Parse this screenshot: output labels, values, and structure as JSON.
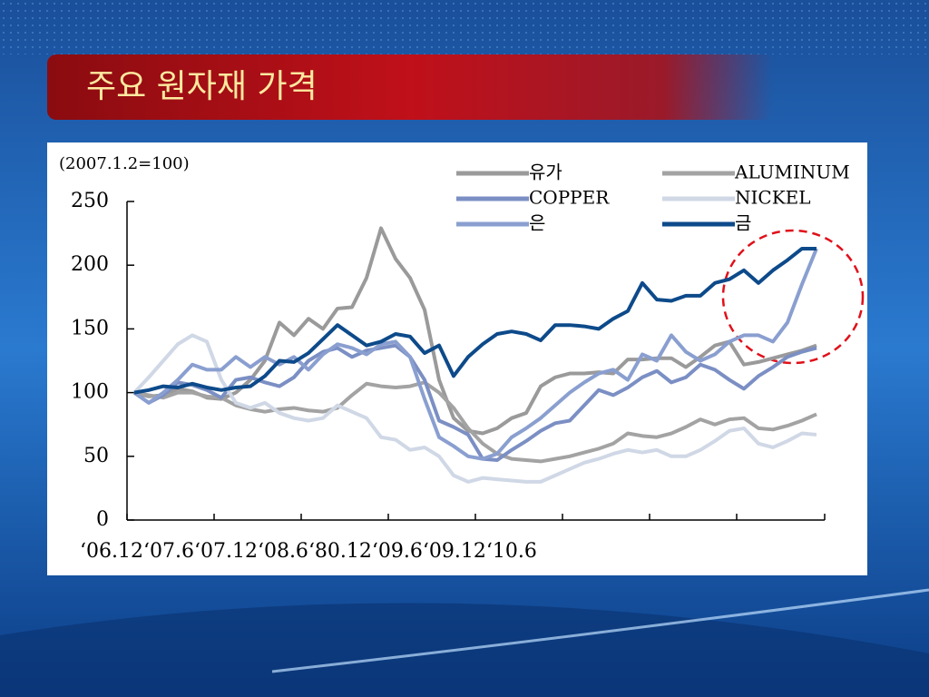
{
  "title": "주요 원자재 가격",
  "chart_data": {
    "type": "line",
    "y_label": "(2007.1.2=100)",
    "categories": [
      "‘06.12",
      null,
      null,
      null,
      null,
      null,
      "‘07.6",
      null,
      null,
      null,
      null,
      null,
      "‘07.12",
      null,
      null,
      null,
      null,
      null,
      "‘08.6",
      null,
      null,
      null,
      null,
      null,
      "‘80.12",
      null,
      null,
      null,
      null,
      null,
      "‘09.6",
      null,
      null,
      null,
      null,
      null,
      "‘09.12",
      null,
      null,
      null,
      null,
      null,
      "‘10.6",
      null,
      null,
      null,
      null,
      null
    ],
    "ylim": [
      0,
      250
    ],
    "yticks": [
      0,
      50,
      100,
      150,
      200,
      250
    ],
    "grid": false,
    "legend": "top-right",
    "series": [
      {
        "name": "유가",
        "color": "#9a9a9a",
        "values": [
          100,
          97,
          98,
          103,
          101,
          96,
          95,
          100,
          110,
          125,
          155,
          145,
          158,
          150,
          166,
          167,
          190,
          229,
          205,
          190,
          165,
          110,
          80,
          70,
          68,
          72,
          80,
          84,
          105,
          112,
          115,
          115,
          116,
          115,
          126,
          126,
          127,
          127,
          120,
          128,
          137,
          140,
          122,
          124,
          127,
          130,
          133,
          137
        ]
      },
      {
        "name": "ALUMINUM",
        "color": "#a3a3a3",
        "values": [
          100,
          98,
          96,
          100,
          100,
          97,
          96,
          90,
          87,
          85,
          87,
          88,
          86,
          85,
          88,
          98,
          107,
          105,
          104,
          105,
          108,
          100,
          88,
          72,
          60,
          52,
          48,
          47,
          46,
          48,
          50,
          53,
          56,
          60,
          68,
          66,
          65,
          68,
          73,
          79,
          75,
          79,
          80,
          72,
          71,
          74,
          78,
          83
        ]
      },
      {
        "name": "COPPER",
        "color": "#7b8fc4",
        "values": [
          100,
          92,
          98,
          108,
          106,
          102,
          96,
          110,
          112,
          108,
          105,
          112,
          125,
          132,
          135,
          128,
          133,
          135,
          137,
          128,
          110,
          78,
          73,
          67,
          48,
          47,
          55,
          62,
          70,
          76,
          78,
          90,
          102,
          98,
          104,
          112,
          117,
          108,
          112,
          122,
          118,
          110,
          103,
          113,
          120,
          128,
          132,
          135
        ]
      },
      {
        "name": "NICKEL",
        "color": "#d0d8e6",
        "values": [
          100,
          112,
          125,
          138,
          145,
          140,
          110,
          92,
          88,
          92,
          84,
          80,
          78,
          80,
          90,
          85,
          80,
          65,
          63,
          55,
          57,
          50,
          35,
          30,
          33,
          32,
          31,
          30,
          30,
          35,
          40,
          45,
          48,
          52,
          55,
          53,
          55,
          50,
          50,
          55,
          62,
          70,
          72,
          60,
          57,
          62,
          68,
          67
        ]
      },
      {
        "name": "은",
        "color": "#8a9fd0",
        "values": [
          100,
          92,
          100,
          110,
          122,
          118,
          118,
          128,
          120,
          128,
          122,
          128,
          118,
          130,
          138,
          135,
          130,
          138,
          140,
          128,
          95,
          65,
          58,
          50,
          48,
          52,
          65,
          72,
          80,
          90,
          100,
          108,
          115,
          118,
          110,
          130,
          125,
          145,
          132,
          125,
          130,
          140,
          145,
          145,
          140,
          155,
          185,
          213
        ]
      },
      {
        "name": "금",
        "color": "#0d4a8a",
        "values": [
          100,
          102,
          105,
          104,
          107,
          104,
          102,
          104,
          105,
          113,
          125,
          124,
          131,
          142,
          153,
          145,
          137,
          140,
          146,
          144,
          131,
          137,
          113,
          128,
          138,
          146,
          148,
          146,
          141,
          153,
          153,
          152,
          150,
          158,
          164,
          186,
          173,
          172,
          176,
          176,
          186,
          189,
          196,
          186,
          196,
          204,
          213,
          213
        ]
      }
    ]
  }
}
